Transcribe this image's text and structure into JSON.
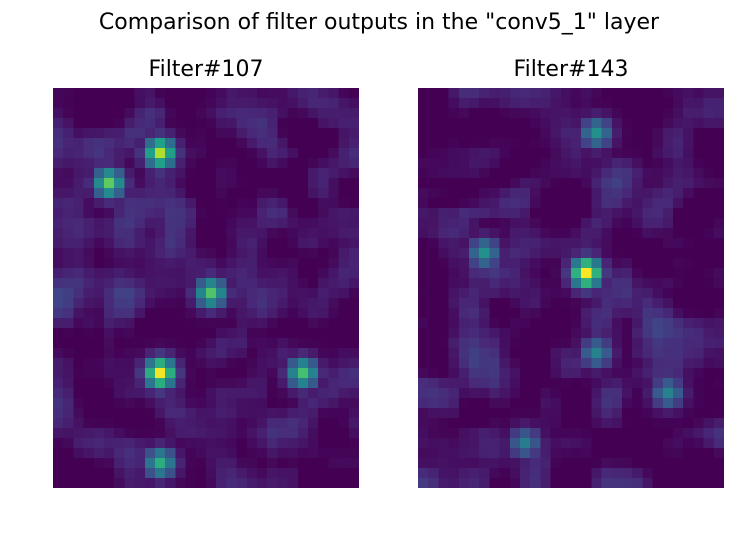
{
  "figure": {
    "suptitle": "Comparison of filter outputs in the \"conv5_1\" layer"
  },
  "chart_data": [
    {
      "type": "heatmap",
      "title": "Filter#107",
      "xlabel": "",
      "ylabel": "",
      "axes_visible": false,
      "colormap": "viridis",
      "value_range": [
        0,
        1
      ],
      "grid": false,
      "rows": 40,
      "cols": 30,
      "hotspots": [
        {
          "row": 6,
          "col": 10,
          "value": 0.88
        },
        {
          "row": 9,
          "col": 5,
          "value": 0.75
        },
        {
          "row": 20,
          "col": 15,
          "value": 0.72
        },
        {
          "row": 28,
          "col": 10,
          "value": 0.98
        },
        {
          "row": 28,
          "col": 24,
          "value": 0.7
        },
        {
          "row": 37,
          "col": 10,
          "value": 0.62
        }
      ]
    },
    {
      "type": "heatmap",
      "title": "Filter#143",
      "xlabel": "",
      "ylabel": "",
      "axes_visible": false,
      "colormap": "viridis",
      "value_range": [
        0,
        1
      ],
      "grid": false,
      "rows": 40,
      "cols": 30,
      "hotspots": [
        {
          "row": 18,
          "col": 16,
          "value": 1.0
        },
        {
          "row": 4,
          "col": 17,
          "value": 0.5
        },
        {
          "row": 16,
          "col": 6,
          "value": 0.5
        },
        {
          "row": 26,
          "col": 17,
          "value": 0.45
        },
        {
          "row": 35,
          "col": 10,
          "value": 0.42
        },
        {
          "row": 30,
          "col": 24,
          "value": 0.45
        }
      ]
    }
  ]
}
